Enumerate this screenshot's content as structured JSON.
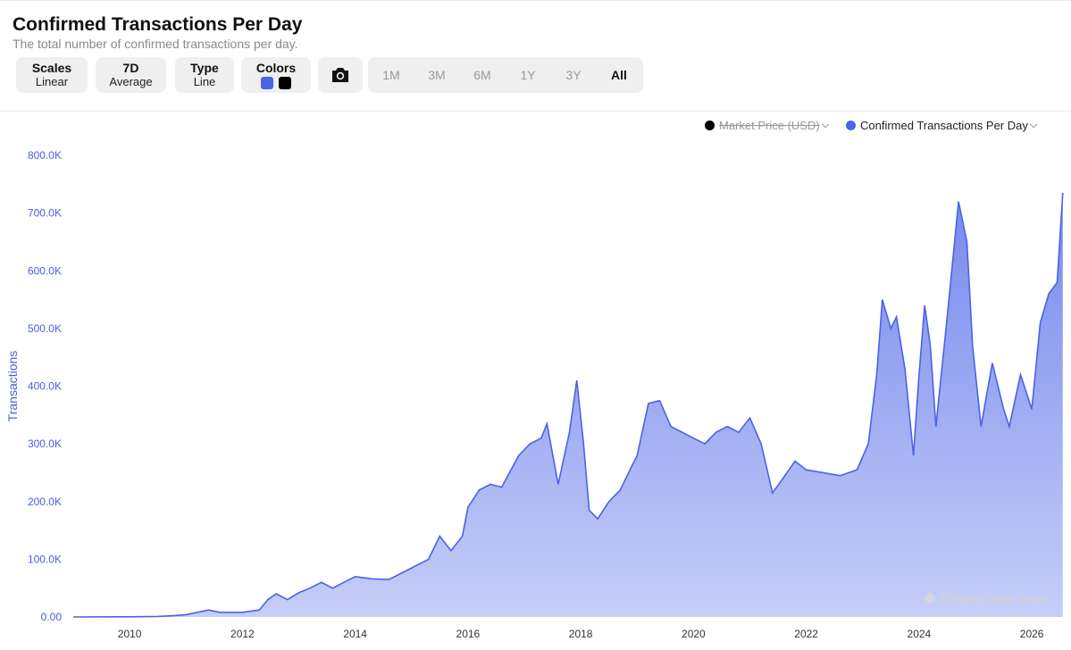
{
  "header": {
    "title": "Confirmed Transactions Per Day",
    "subtitle": "The total number of confirmed transactions per day."
  },
  "controls": {
    "scales": {
      "label": "Scales",
      "value": "Linear"
    },
    "average": {
      "label": "7D",
      "value": "Average"
    },
    "type": {
      "label": "Type",
      "value": "Line"
    },
    "colors": {
      "label": "Colors",
      "swatch_1": "#4a63e7",
      "swatch_2": "#000000"
    },
    "camera_icon": "camera-icon",
    "ranges": [
      "1M",
      "3M",
      "6M",
      "1Y",
      "3Y",
      "All"
    ],
    "active_range": "All"
  },
  "legend": [
    {
      "label": "Market Price (USD)",
      "color": "#000000",
      "enabled": false
    },
    {
      "label": "Confirmed Transactions Per Day",
      "color": "#4a63e7",
      "enabled": true
    }
  ],
  "watermark": "Blockchain.com",
  "chart_data": {
    "type": "area",
    "title": "Confirmed Transactions Per Day",
    "ylabel": "Transactions",
    "xlabel": "",
    "ylim": [
      0,
      800000
    ],
    "xlim": [
      2009.0,
      2026.6
    ],
    "y_ticks": [
      "0.00",
      "100.0K",
      "200.0K",
      "300.0K",
      "400.0K",
      "500.0K",
      "600.0K",
      "700.0K",
      "800.0K"
    ],
    "x_ticks": [
      "2010",
      "2012",
      "2014",
      "2016",
      "2018",
      "2020",
      "2022",
      "2024",
      "2026"
    ],
    "grid": false,
    "legend_position": "top-right",
    "series": [
      {
        "name": "Confirmed Transactions Per Day",
        "color": "#4a63e7",
        "points": [
          [
            2009.0,
            0
          ],
          [
            2010.0,
            300
          ],
          [
            2010.5,
            1000
          ],
          [
            2010.8,
            2500
          ],
          [
            2011.0,
            4000
          ],
          [
            2011.4,
            12000
          ],
          [
            2011.6,
            8000
          ],
          [
            2012.0,
            8000
          ],
          [
            2012.3,
            12000
          ],
          [
            2012.45,
            30000
          ],
          [
            2012.6,
            40000
          ],
          [
            2012.8,
            30000
          ],
          [
            2013.0,
            42000
          ],
          [
            2013.2,
            50000
          ],
          [
            2013.4,
            60000
          ],
          [
            2013.6,
            50000
          ],
          [
            2013.8,
            60000
          ],
          [
            2014.0,
            70000
          ],
          [
            2014.3,
            66000
          ],
          [
            2014.6,
            65000
          ],
          [
            2015.0,
            85000
          ],
          [
            2015.3,
            100000
          ],
          [
            2015.5,
            140000
          ],
          [
            2015.7,
            115000
          ],
          [
            2015.9,
            140000
          ],
          [
            2016.0,
            190000
          ],
          [
            2016.2,
            220000
          ],
          [
            2016.4,
            230000
          ],
          [
            2016.6,
            225000
          ],
          [
            2016.9,
            280000
          ],
          [
            2017.1,
            300000
          ],
          [
            2017.3,
            310000
          ],
          [
            2017.4,
            335000
          ],
          [
            2017.6,
            230000
          ],
          [
            2017.8,
            320000
          ],
          [
            2017.93,
            410000
          ],
          [
            2018.05,
            300000
          ],
          [
            2018.15,
            185000
          ],
          [
            2018.3,
            170000
          ],
          [
            2018.5,
            200000
          ],
          [
            2018.7,
            220000
          ],
          [
            2018.9,
            260000
          ],
          [
            2019.0,
            280000
          ],
          [
            2019.2,
            370000
          ],
          [
            2019.4,
            375000
          ],
          [
            2019.6,
            330000
          ],
          [
            2019.8,
            320000
          ],
          [
            2020.0,
            310000
          ],
          [
            2020.2,
            300000
          ],
          [
            2020.4,
            320000
          ],
          [
            2020.6,
            330000
          ],
          [
            2020.8,
            320000
          ],
          [
            2021.0,
            345000
          ],
          [
            2021.2,
            300000
          ],
          [
            2021.4,
            215000
          ],
          [
            2021.55,
            235000
          ],
          [
            2021.8,
            270000
          ],
          [
            2022.0,
            255000
          ],
          [
            2022.3,
            250000
          ],
          [
            2022.6,
            245000
          ],
          [
            2022.9,
            255000
          ],
          [
            2023.1,
            300000
          ],
          [
            2023.25,
            420000
          ],
          [
            2023.35,
            550000
          ],
          [
            2023.5,
            500000
          ],
          [
            2023.6,
            520000
          ],
          [
            2023.75,
            430000
          ],
          [
            2023.9,
            280000
          ],
          [
            2024.0,
            420000
          ],
          [
            2024.1,
            540000
          ],
          [
            2024.2,
            470000
          ],
          [
            2024.3,
            330000
          ],
          [
            2024.5,
            520000
          ],
          [
            2024.7,
            720000
          ],
          [
            2024.85,
            650000
          ],
          [
            2024.95,
            470000
          ],
          [
            2025.1,
            330000
          ],
          [
            2025.3,
            440000
          ],
          [
            2025.5,
            360000
          ],
          [
            2025.6,
            330000
          ],
          [
            2025.8,
            420000
          ],
          [
            2026.0,
            360000
          ],
          [
            2026.15,
            510000
          ],
          [
            2026.3,
            560000
          ],
          [
            2026.45,
            580000
          ],
          [
            2026.55,
            735000
          ]
        ]
      }
    ]
  }
}
